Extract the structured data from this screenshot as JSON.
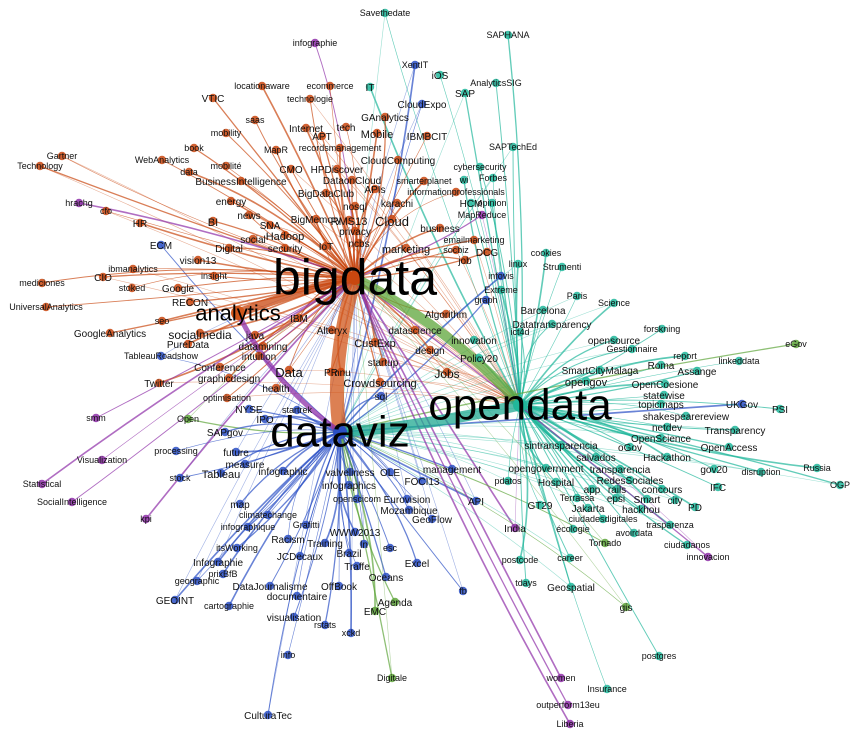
{
  "colors": {
    "bigdata": "#c9470f",
    "dataviz": "#2a4fc4",
    "opendata": "#21b79b",
    "analytics": "#d0561a",
    "purple": "#8e2fa8",
    "green": "#5ea53a",
    "teal": "#1fa890"
  },
  "hubs": [
    {
      "id": "bigdata",
      "label": "bigdata"
    },
    {
      "id": "opendata",
      "label": "opendata"
    },
    {
      "id": "dataviz",
      "label": "dataviz"
    },
    {
      "id": "analytics",
      "label": "analytics"
    }
  ],
  "nodes": [
    {
      "label": "Savethedate",
      "group": "opendata"
    },
    {
      "label": "infographie",
      "group": "purple"
    },
    {
      "label": "SAPHANA",
      "group": "opendata"
    },
    {
      "label": "XentIT",
      "group": "dataviz"
    },
    {
      "label": "iOS",
      "group": "opendata"
    },
    {
      "label": "AnalyticsSIG",
      "group": "opendata"
    },
    {
      "label": "SAP",
      "group": "opendata"
    },
    {
      "label": "locationaware",
      "group": "bigdata"
    },
    {
      "label": "ecommerce",
      "group": "bigdata"
    },
    {
      "label": "technologie",
      "group": "bigdata"
    },
    {
      "label": "VTIC",
      "group": "bigdata"
    },
    {
      "label": "IT",
      "group": "opendata"
    },
    {
      "label": "CloudExpo",
      "group": "dataviz"
    },
    {
      "label": "saas",
      "group": "bigdata"
    },
    {
      "label": "GAnalytics",
      "group": "bigdata"
    },
    {
      "label": "Internet",
      "group": "bigdata"
    },
    {
      "label": "tech",
      "group": "bigdata"
    },
    {
      "label": "mobility",
      "group": "bigdata"
    },
    {
      "label": "APT",
      "group": "bigdata"
    },
    {
      "label": "Mobile",
      "group": "bigdata"
    },
    {
      "label": "IBMBCIT",
      "group": "bigdata"
    },
    {
      "label": "SAPTechEd",
      "group": "opendata"
    },
    {
      "label": "book",
      "group": "bigdata"
    },
    {
      "label": "recordsmanagement",
      "group": "bigdata"
    },
    {
      "label": "Gartner",
      "group": "bigdata"
    },
    {
      "label": "WebAnalytics",
      "group": "bigdata"
    },
    {
      "label": "MapR",
      "group": "bigdata"
    },
    {
      "label": "HPDiscover",
      "group": "bigdata"
    },
    {
      "label": "CloudComputing",
      "group": "bigdata"
    },
    {
      "label": "cybersecurity",
      "group": "opendata"
    },
    {
      "label": "Technology",
      "group": "bigdata"
    },
    {
      "label": "data",
      "group": "bigdata"
    },
    {
      "label": "mobilité",
      "group": "bigdata"
    },
    {
      "label": "CMO",
      "group": "bigdata"
    },
    {
      "label": "DataonCloud",
      "group": "bigdata"
    },
    {
      "label": "smarterplanet",
      "group": "bigdata"
    },
    {
      "label": "Forbes",
      "group": "opendata"
    },
    {
      "label": "BusinessIntelligence",
      "group": "bigdata"
    },
    {
      "label": "wi",
      "group": "opendata"
    },
    {
      "label": "APIs",
      "group": "bigdata"
    },
    {
      "label": "informationprofessionals",
      "group": "bigdata"
    },
    {
      "label": "BigDataClub",
      "group": "bigdata"
    },
    {
      "label": "energy",
      "group": "bigdata"
    },
    {
      "label": "nosql",
      "group": "bigdata"
    },
    {
      "label": "karachi",
      "group": "bigdata"
    },
    {
      "label": "HCM",
      "group": "opendata"
    },
    {
      "label": "opinion",
      "group": "opendata"
    },
    {
      "label": "hrachg",
      "group": "purple"
    },
    {
      "label": "cfo",
      "group": "bigdata"
    },
    {
      "label": "news",
      "group": "bigdata"
    },
    {
      "label": "BI",
      "group": "bigdata"
    },
    {
      "label": "BigMemory",
      "group": "bigdata"
    },
    {
      "label": "RMS13",
      "group": "bigdata"
    },
    {
      "label": "Cloud",
      "group": "bigdata"
    },
    {
      "label": "MapReduce",
      "group": "purple"
    },
    {
      "label": "HR",
      "group": "bigdata"
    },
    {
      "label": "SNA",
      "group": "bigdata"
    },
    {
      "label": "Hadoop",
      "group": "bigdata"
    },
    {
      "label": "privacy",
      "group": "bigdata"
    },
    {
      "label": "business",
      "group": "bigdata"
    },
    {
      "label": "social",
      "group": "bigdata"
    },
    {
      "label": "ECM",
      "group": "dataviz"
    },
    {
      "label": "Digital",
      "group": "bigdata"
    },
    {
      "label": "security",
      "group": "bigdata"
    },
    {
      "label": "IoT",
      "group": "bigdata"
    },
    {
      "label": "ncbs",
      "group": "bigdata"
    },
    {
      "label": "emailmarketing",
      "group": "bigdata"
    },
    {
      "label": "vision13",
      "group": "bigdata"
    },
    {
      "label": "marketing",
      "group": "bigdata"
    },
    {
      "label": "socbiz",
      "group": "bigdata"
    },
    {
      "label": "DCG",
      "group": "bigdata"
    },
    {
      "label": "cookies",
      "group": "opendata"
    },
    {
      "label": "ibmanalytics",
      "group": "bigdata"
    },
    {
      "label": "insight",
      "group": "bigdata"
    },
    {
      "label": "job",
      "group": "bigdata"
    },
    {
      "label": "linux",
      "group": "opendata"
    },
    {
      "label": "Strumenti",
      "group": "opendata"
    },
    {
      "label": "mediciones",
      "group": "bigdata"
    },
    {
      "label": "CIO",
      "group": "bigdata"
    },
    {
      "label": "infovis",
      "group": "dataviz"
    },
    {
      "label": "stoked",
      "group": "bigdata"
    },
    {
      "label": "Google",
      "group": "bigdata"
    },
    {
      "label": "RECON",
      "group": "bigdata"
    },
    {
      "label": "Extreme",
      "group": "opendata"
    },
    {
      "label": "Paris",
      "group": "opendata"
    },
    {
      "label": "UniversalAnalytics",
      "group": "bigdata"
    },
    {
      "label": "graph",
      "group": "dataviz"
    },
    {
      "label": "Science",
      "group": "opendata"
    },
    {
      "label": "Barcelona",
      "group": "opendata"
    },
    {
      "label": "Algorithm",
      "group": "bigdata"
    },
    {
      "label": "IBM",
      "group": "bigdata"
    },
    {
      "label": "seo",
      "group": "bigdata"
    },
    {
      "label": "Alteryx",
      "group": "bigdata"
    },
    {
      "label": "Datatransparency",
      "group": "opendata"
    },
    {
      "label": "GoogleAnalytics",
      "group": "bigdata"
    },
    {
      "label": "socialmedia",
      "group": "bigdata"
    },
    {
      "label": "datascience",
      "group": "bigdata"
    },
    {
      "label": "ict4d",
      "group": "opendata"
    },
    {
      "label": "java",
      "group": "bigdata"
    },
    {
      "label": "CustExp",
      "group": "bigdata"
    },
    {
      "label": "innovation",
      "group": "opendata"
    },
    {
      "label": "forskning",
      "group": "opendata"
    },
    {
      "label": "opensource",
      "group": "opendata"
    },
    {
      "label": "PureData",
      "group": "bigdata"
    },
    {
      "label": "datamining",
      "group": "bigdata"
    },
    {
      "label": "Gestionnaire",
      "group": "opendata"
    },
    {
      "label": "eGov",
      "group": "green"
    },
    {
      "label": "design",
      "group": "bigdata"
    },
    {
      "label": "TableauRoadshow",
      "group": "dataviz"
    },
    {
      "label": "intuition",
      "group": "bigdata"
    },
    {
      "label": "Policy20",
      "group": "opendata"
    },
    {
      "label": "report",
      "group": "opendata"
    },
    {
      "label": "linkeddata",
      "group": "opendata"
    },
    {
      "label": "Conference",
      "group": "bigdata"
    },
    {
      "label": "startup",
      "group": "bigdata"
    },
    {
      "label": "SmartCityMalaga",
      "group": "opendata"
    },
    {
      "label": "Roma",
      "group": "opendata"
    },
    {
      "label": "Data",
      "group": "bigdata"
    },
    {
      "label": "graphicdesign",
      "group": "bigdata"
    },
    {
      "label": "mnu",
      "group": "bigdata"
    },
    {
      "label": "Jobs",
      "group": "bigdata"
    },
    {
      "label": "opengov",
      "group": "opendata"
    },
    {
      "label": "Assange",
      "group": "opendata"
    },
    {
      "label": "Twitter",
      "group": "bigdata"
    },
    {
      "label": "health",
      "group": "bigdata"
    },
    {
      "label": "PR",
      "group": "bigdata"
    },
    {
      "label": "Crowdsourcing",
      "group": "bigdata"
    },
    {
      "label": "OpenCoesione",
      "group": "opendata"
    },
    {
      "label": "statewise",
      "group": "opendata"
    },
    {
      "label": "optimisation",
      "group": "bigdata"
    },
    {
      "label": "sql",
      "group": "dataviz"
    },
    {
      "label": "UKGov",
      "group": "dataviz"
    },
    {
      "label": "topicmaps",
      "group": "opendata"
    },
    {
      "label": "PSI",
      "group": "opendata"
    },
    {
      "label": "NYSE",
      "group": "dataviz"
    },
    {
      "label": "startrek",
      "group": "dataviz"
    },
    {
      "label": "shakespearereview",
      "group": "opendata"
    },
    {
      "label": "smm",
      "group": "purple"
    },
    {
      "label": "Open",
      "group": "green"
    },
    {
      "label": "IPO",
      "group": "dataviz"
    },
    {
      "label": "netdev",
      "group": "opendata"
    },
    {
      "label": "Transparency",
      "group": "opendata"
    },
    {
      "label": "SAPgov",
      "group": "dataviz"
    },
    {
      "label": "sintransparencia",
      "group": "opendata"
    },
    {
      "label": "OpenScience",
      "group": "opendata"
    },
    {
      "label": "oGov",
      "group": "opendata"
    },
    {
      "label": "OpenAccess",
      "group": "opendata"
    },
    {
      "label": "future",
      "group": "dataviz"
    },
    {
      "label": "processing",
      "group": "dataviz"
    },
    {
      "label": "measure",
      "group": "dataviz"
    },
    {
      "label": "salvados",
      "group": "opendata"
    },
    {
      "label": "Hackathon",
      "group": "opendata"
    },
    {
      "label": "Visualization",
      "group": "purple"
    },
    {
      "label": "stock",
      "group": "dataviz"
    },
    {
      "label": "Tableau",
      "group": "dataviz"
    },
    {
      "label": "infographic",
      "group": "dataviz"
    },
    {
      "label": "valveliness",
      "group": "dataviz"
    },
    {
      "label": "OLE",
      "group": "dataviz"
    },
    {
      "label": "management",
      "group": "dataviz"
    },
    {
      "label": "opengovernment",
      "group": "opendata"
    },
    {
      "label": "transparencia",
      "group": "opendata"
    },
    {
      "label": "gov20",
      "group": "opendata"
    },
    {
      "label": "disruption",
      "group": "opendata"
    },
    {
      "label": "Russia",
      "group": "opendata"
    },
    {
      "label": "infographics",
      "group": "dataviz"
    },
    {
      "label": "FOCI13",
      "group": "dataviz"
    },
    {
      "label": "RedesSociales",
      "group": "opendata"
    },
    {
      "label": "Statistical",
      "group": "purple"
    },
    {
      "label": "pdatos",
      "group": "opendata"
    },
    {
      "label": "Hospital",
      "group": "opendata"
    },
    {
      "label": "app",
      "group": "opendata"
    },
    {
      "label": "rails",
      "group": "opendata"
    },
    {
      "label": "concours",
      "group": "opendata"
    },
    {
      "label": "IFC",
      "group": "opendata"
    },
    {
      "label": "OGP",
      "group": "opendata"
    },
    {
      "label": "openscicom",
      "group": "dataviz"
    },
    {
      "label": "Eurovision",
      "group": "dataviz"
    },
    {
      "label": "Terrassa",
      "group": "opendata"
    },
    {
      "label": "epsi",
      "group": "opendata"
    },
    {
      "label": "Smart",
      "group": "opendata"
    },
    {
      "label": "city",
      "group": "opendata"
    },
    {
      "label": "SocialIntelligence",
      "group": "purple"
    },
    {
      "label": "map",
      "group": "dataviz"
    },
    {
      "label": "API",
      "group": "dataviz"
    },
    {
      "label": "GT29",
      "group": "opendata"
    },
    {
      "label": "Jakarta",
      "group": "opendata"
    },
    {
      "label": "hackhou",
      "group": "opendata"
    },
    {
      "label": "PD",
      "group": "opendata"
    },
    {
      "label": "climatechange",
      "group": "dataviz"
    },
    {
      "label": "Mozambique",
      "group": "dataviz"
    },
    {
      "label": "ciudadesdigitales",
      "group": "opendata"
    },
    {
      "label": "kpi",
      "group": "purple"
    },
    {
      "label": "GeoFlow",
      "group": "dataviz"
    },
    {
      "label": "infographique",
      "group": "dataviz"
    },
    {
      "label": "Grafitti",
      "group": "dataviz"
    },
    {
      "label": "India",
      "group": "purple"
    },
    {
      "label": "écologie",
      "group": "opendata"
    },
    {
      "label": "avoirdata",
      "group": "opendata"
    },
    {
      "label": "trasparenza",
      "group": "opendata"
    },
    {
      "label": "WWW2013",
      "group": "dataviz"
    },
    {
      "label": "Racism",
      "group": "dataviz"
    },
    {
      "label": "Tornado",
      "group": "green"
    },
    {
      "label": "itsWorking",
      "group": "dataviz"
    },
    {
      "label": "Training",
      "group": "dataviz"
    },
    {
      "label": "ln",
      "group": "dataviz"
    },
    {
      "label": "esc",
      "group": "dataviz"
    },
    {
      "label": "ciudadanos",
      "group": "opendata"
    },
    {
      "label": "Infographie",
      "group": "dataviz"
    },
    {
      "label": "JCDecaux",
      "group": "dataviz"
    },
    {
      "label": "Brazil",
      "group": "dataviz"
    },
    {
      "label": "innovacion",
      "group": "purple"
    },
    {
      "label": "prixBfB",
      "group": "dataviz"
    },
    {
      "label": "Traffe",
      "group": "dataviz"
    },
    {
      "label": "career",
      "group": "opendata"
    },
    {
      "label": "Excel",
      "group": "dataviz"
    },
    {
      "label": "postcode",
      "group": "opendata"
    },
    {
      "label": "geographic",
      "group": "dataviz"
    },
    {
      "label": "DataJournalisme",
      "group": "dataviz"
    },
    {
      "label": "Oceans",
      "group": "dataviz"
    },
    {
      "label": "GEOINT",
      "group": "dataviz"
    },
    {
      "label": "OffBook",
      "group": "dataviz"
    },
    {
      "label": "tdays",
      "group": "opendata"
    },
    {
      "label": "Geospatial",
      "group": "opendata"
    },
    {
      "label": "cartographie",
      "group": "dataviz"
    },
    {
      "label": "documentaire",
      "group": "dataviz"
    },
    {
      "label": "fb",
      "group": "dataviz"
    },
    {
      "label": "Agenda",
      "group": "green"
    },
    {
      "label": "EMC",
      "group": "green"
    },
    {
      "label": "gis",
      "group": "green"
    },
    {
      "label": "visualisation",
      "group": "dataviz"
    },
    {
      "label": "rstats",
      "group": "dataviz"
    },
    {
      "label": "xckd",
      "group": "dataviz"
    },
    {
      "label": "info",
      "group": "dataviz"
    },
    {
      "label": "postgres",
      "group": "opendata"
    },
    {
      "label": "Digitale",
      "group": "green"
    },
    {
      "label": "women",
      "group": "purple"
    },
    {
      "label": "Insurance",
      "group": "opendata"
    },
    {
      "label": "CulturaTec",
      "group": "dataviz"
    },
    {
      "label": "outperform13eu",
      "group": "purple"
    },
    {
      "label": "Liberia",
      "group": "purple"
    }
  ]
}
